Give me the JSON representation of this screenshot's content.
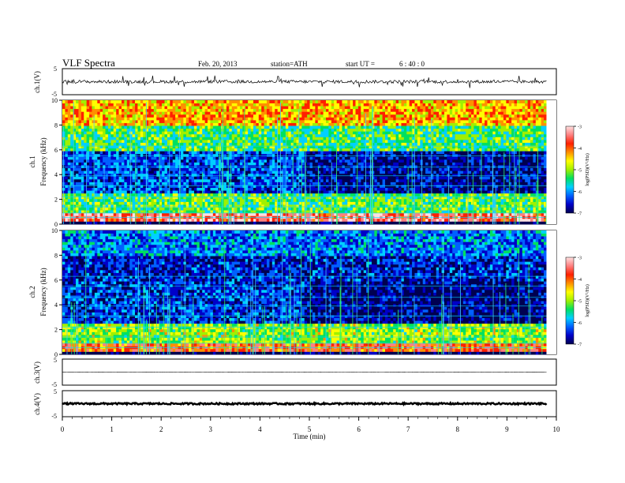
{
  "header": {
    "title": "VLF Spectra",
    "date": "Feb. 20, 2013",
    "station": "station=ATH",
    "start_label": "start UT =",
    "start_time": "6 : 40 : 0"
  },
  "colorbar": {
    "label": "log(PSD)(V²/Hz)",
    "ticks": [
      "-3",
      "-4",
      "-5",
      "-6",
      "-7"
    ],
    "range": [
      -7,
      -3
    ],
    "colors": [
      "#000050",
      "#0000c8",
      "#0060ff",
      "#00d0ff",
      "#00e060",
      "#a0f000",
      "#ffff00",
      "#ff9000",
      "#ff2000",
      "#ff8080",
      "#ffe0e0"
    ]
  },
  "chart_data": [
    {
      "type": "line",
      "panel": "ch1-waveform",
      "ylabel": "ch.1(V)",
      "yticks": [
        "5",
        "-5"
      ],
      "ylim": [
        -5,
        5
      ],
      "description_values": {
        "mean": 0.0,
        "typical_amplitude": 0.6,
        "spike_amplitude": 2.5
      }
    },
    {
      "type": "heatmap",
      "panel": "ch1-spectrogram",
      "ylabel": "Frequency (kHz)",
      "channel": "ch.1",
      "yticks": [
        "0",
        "2",
        "4",
        "6",
        "8",
        "10"
      ],
      "ylim": [
        0,
        10
      ],
      "xlim": [
        0,
        9.8
      ],
      "bands": [
        {
          "f0": 0.0,
          "f1": 0.3,
          "level": -7
        },
        {
          "f0": 0.3,
          "f1": 0.8,
          "level": -3.6
        },
        {
          "f0": 0.8,
          "f1": 2.6,
          "level": -5.2
        },
        {
          "f0": 2.6,
          "f1": 6.0,
          "level": -6.2
        },
        {
          "f0": 6.0,
          "f1": 8.0,
          "level": -5.3
        },
        {
          "f0": 8.0,
          "f1": 10.0,
          "level": -4.4
        }
      ]
    },
    {
      "type": "heatmap",
      "panel": "ch2-spectrogram",
      "ylabel": "Frequency (kHz)",
      "channel": "ch.2",
      "yticks": [
        "0",
        "2",
        "4",
        "6",
        "8",
        "10"
      ],
      "ylim": [
        0,
        10
      ],
      "xlim": [
        0,
        9.8
      ],
      "bands": [
        {
          "f0": 0.0,
          "f1": 0.3,
          "level": -7
        },
        {
          "f0": 0.3,
          "f1": 1.0,
          "level": -4.0
        },
        {
          "f0": 1.0,
          "f1": 2.6,
          "level": -5.0
        },
        {
          "f0": 2.6,
          "f1": 6.0,
          "level": -6.3
        },
        {
          "f0": 6.0,
          "f1": 8.0,
          "level": -6.4
        },
        {
          "f0": 8.0,
          "f1": 10.0,
          "level": -6.0
        }
      ]
    },
    {
      "type": "line",
      "panel": "ch3-waveform",
      "ylabel": "ch.3(V)",
      "yticks": [
        "5",
        "-5"
      ],
      "ylim": [
        -5,
        5
      ],
      "description_values": {
        "mean": 0.0,
        "typical_amplitude": 0.05
      }
    },
    {
      "type": "line",
      "panel": "ch4-waveform",
      "ylabel": "ch.4(V)",
      "yticks": [
        "5",
        "-5"
      ],
      "ylim": [
        -5,
        5
      ],
      "description_values": {
        "mean": 0.0,
        "typical_amplitude": 0.3
      }
    }
  ],
  "xaxis": {
    "label": "Time (min)",
    "ticks": [
      "0",
      "1",
      "2",
      "3",
      "4",
      "5",
      "6",
      "7",
      "8",
      "9",
      "10"
    ],
    "xlim": [
      0,
      10
    ]
  }
}
